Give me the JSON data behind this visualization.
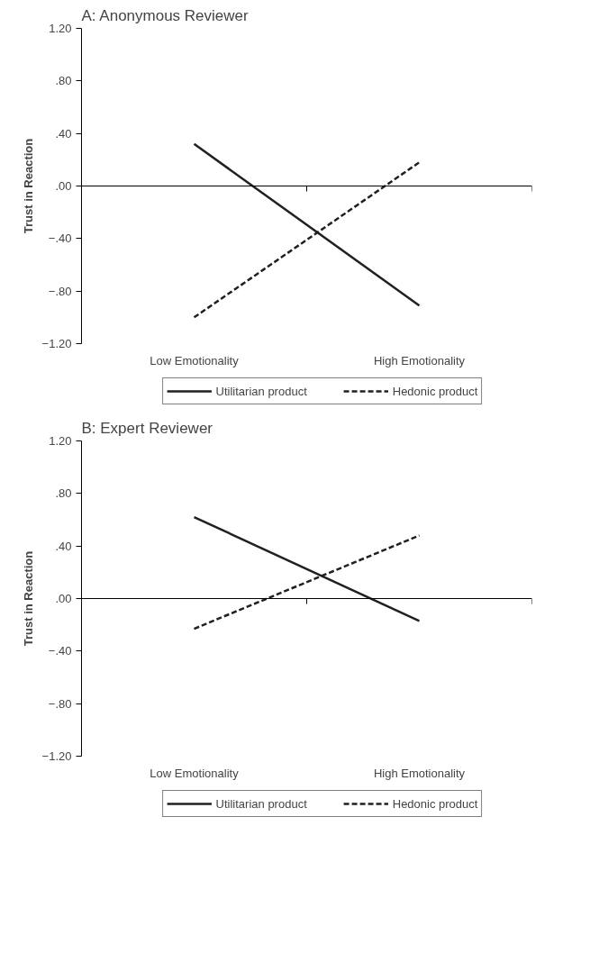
{
  "chart_data": [
    {
      "type": "line",
      "title": "A: Anonymous Reviewer",
      "ylabel": "Trust in Reaction",
      "categories": [
        "Low Emotionality",
        "High Emotionality"
      ],
      "ylim": [
        -1.2,
        1.2
      ],
      "yticks": [
        {
          "value": 1.2,
          "label": "1.20"
        },
        {
          "value": 0.8,
          "label": ".80"
        },
        {
          "value": 0.4,
          "label": ".40"
        },
        {
          "value": 0,
          "label": ".00"
        },
        {
          "value": -0.4,
          "label": "−.40"
        },
        {
          "value": -0.8,
          "label": "−.80"
        },
        {
          "value": -1.2,
          "label": "−1.20"
        }
      ],
      "legend": "bottom",
      "marker": "none",
      "series": [
        {
          "name": "Utilitarian product",
          "color": "#231f20",
          "line_style": "solid",
          "values": [
            0.32,
            -0.91
          ]
        },
        {
          "name": "Hedonic product",
          "color": "#231f20",
          "line_style": "dashed",
          "values": [
            -1.0,
            0.18
          ]
        }
      ]
    },
    {
      "type": "line",
      "title": "B: Expert Reviewer",
      "ylabel": "Trust in Reaction",
      "categories": [
        "Low Emotionality",
        "High Emotionality"
      ],
      "ylim": [
        -1.2,
        1.2
      ],
      "yticks": [
        {
          "value": 1.2,
          "label": "1.20"
        },
        {
          "value": 0.8,
          "label": ".80"
        },
        {
          "value": 0.4,
          "label": ".40"
        },
        {
          "value": 0,
          "label": ".00"
        },
        {
          "value": -0.4,
          "label": "−.40"
        },
        {
          "value": -0.8,
          "label": "−.80"
        },
        {
          "value": -1.2,
          "label": "−1.20"
        }
      ],
      "legend": "bottom",
      "marker": "none",
      "series": [
        {
          "name": "Utilitarian product",
          "color": "#231f20",
          "line_style": "solid",
          "values": [
            0.62,
            -0.17
          ]
        },
        {
          "name": "Hedonic product",
          "color": "#231f20",
          "line_style": "dashed",
          "values": [
            -0.23,
            0.48
          ]
        }
      ]
    }
  ]
}
